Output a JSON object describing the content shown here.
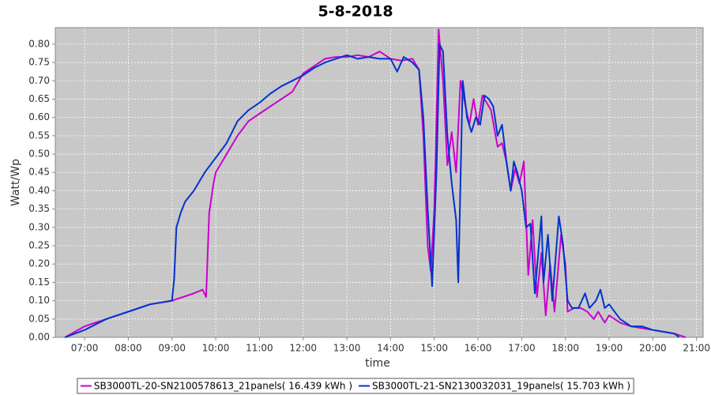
{
  "chart_data": {
    "type": "line",
    "title": "5-8-2018",
    "x_label": "time",
    "y_label": "Watt/Wp",
    "xlim": [
      6.33,
      21.15
    ],
    "ylim": [
      0,
      0.845
    ],
    "grid": true,
    "legend": "bottom",
    "xticks": [
      {
        "value": 7,
        "label": "07:00"
      },
      {
        "value": 8,
        "label": "08:00"
      },
      {
        "value": 9,
        "label": "09:00"
      },
      {
        "value": 10,
        "label": "10:00"
      },
      {
        "value": 11,
        "label": "11:00"
      },
      {
        "value": 12,
        "label": "12:00"
      },
      {
        "value": 13,
        "label": "13:00"
      },
      {
        "value": 14,
        "label": "14:00"
      },
      {
        "value": 15,
        "label": "15:00"
      },
      {
        "value": 16,
        "label": "16:00"
      },
      {
        "value": 17,
        "label": "17:00"
      },
      {
        "value": 18,
        "label": "18:00"
      },
      {
        "value": 19,
        "label": "19:00"
      },
      {
        "value": 20,
        "label": "20:00"
      },
      {
        "value": 21,
        "label": "21:00"
      }
    ],
    "yticks": [
      {
        "value": 0,
        "label": "0.00"
      },
      {
        "value": 0.05,
        "label": "0.05"
      },
      {
        "value": 0.1,
        "label": "0.10"
      },
      {
        "value": 0.15,
        "label": "0.15"
      },
      {
        "value": 0.2,
        "label": "0.20"
      },
      {
        "value": 0.25,
        "label": "0.25"
      },
      {
        "value": 0.3,
        "label": "0.30"
      },
      {
        "value": 0.35,
        "label": "0.35"
      },
      {
        "value": 0.4,
        "label": "0.40"
      },
      {
        "value": 0.45,
        "label": "0.45"
      },
      {
        "value": 0.5,
        "label": "0.50"
      },
      {
        "value": 0.55,
        "label": "0.55"
      },
      {
        "value": 0.6,
        "label": "0.60"
      },
      {
        "value": 0.65,
        "label": "0.65"
      },
      {
        "value": 0.7,
        "label": "0.70"
      },
      {
        "value": 0.75,
        "label": "0.75"
      },
      {
        "value": 0.8,
        "label": "0.80"
      }
    ],
    "series": [
      {
        "name": "SB3000TL-20-SN2100578613_21panels( 16.439 kWh )",
        "color": "#cc00cc",
        "x": [
          6.55,
          7.0,
          7.5,
          8.0,
          8.5,
          9.0,
          9.25,
          9.5,
          9.7,
          9.78,
          9.85,
          9.95,
          10.0,
          10.25,
          10.5,
          10.75,
          11.0,
          11.25,
          11.5,
          11.75,
          12.0,
          12.25,
          12.5,
          12.75,
          13.0,
          13.25,
          13.5,
          13.75,
          14.0,
          14.25,
          14.5,
          14.65,
          14.75,
          14.85,
          14.92,
          15.0,
          15.1,
          15.2,
          15.3,
          15.4,
          15.5,
          15.6,
          15.7,
          15.8,
          15.9,
          16.0,
          16.1,
          16.2,
          16.3,
          16.45,
          16.55,
          16.65,
          16.75,
          16.85,
          16.95,
          17.05,
          17.15,
          17.25,
          17.35,
          17.45,
          17.55,
          17.65,
          17.75,
          17.9,
          18.0,
          18.05,
          18.2,
          18.35,
          18.5,
          18.65,
          18.75,
          18.9,
          19.0,
          19.25,
          19.5,
          19.75,
          20.0,
          20.25,
          20.5,
          20.75
        ],
        "values": [
          0,
          0.03,
          0.05,
          0.07,
          0.09,
          0.1,
          0.11,
          0.12,
          0.13,
          0.11,
          0.34,
          0.42,
          0.45,
          0.5,
          0.55,
          0.59,
          0.61,
          0.63,
          0.65,
          0.67,
          0.72,
          0.74,
          0.76,
          0.765,
          0.765,
          0.77,
          0.765,
          0.78,
          0.76,
          0.755,
          0.76,
          0.73,
          0.55,
          0.25,
          0.18,
          0.35,
          0.84,
          0.7,
          0.47,
          0.56,
          0.45,
          0.7,
          0.64,
          0.58,
          0.65,
          0.58,
          0.66,
          0.64,
          0.62,
          0.52,
          0.53,
          0.48,
          0.4,
          0.46,
          0.42,
          0.48,
          0.17,
          0.32,
          0.11,
          0.23,
          0.06,
          0.2,
          0.07,
          0.28,
          0.2,
          0.07,
          0.08,
          0.08,
          0.07,
          0.05,
          0.07,
          0.04,
          0.06,
          0.04,
          0.03,
          0.025,
          0.02,
          0.015,
          0.01,
          0
        ]
      },
      {
        "name": "SB3000TL-21-SN2130032031_19panels( 15.703 kWh )",
        "color": "#0033cc",
        "x": [
          6.55,
          7.0,
          7.5,
          8.0,
          8.5,
          9.0,
          9.05,
          9.1,
          9.2,
          9.3,
          9.5,
          9.75,
          10.0,
          10.25,
          10.5,
          10.75,
          11.0,
          11.25,
          11.5,
          11.75,
          12.0,
          12.25,
          12.5,
          12.75,
          13.0,
          13.25,
          13.5,
          13.75,
          14.0,
          14.15,
          14.3,
          14.5,
          14.65,
          14.75,
          14.85,
          14.95,
          15.05,
          15.12,
          15.2,
          15.3,
          15.4,
          15.5,
          15.55,
          15.65,
          15.75,
          15.85,
          15.95,
          16.05,
          16.15,
          16.25,
          16.35,
          16.45,
          16.55,
          16.65,
          16.75,
          16.82,
          16.9,
          17.0,
          17.1,
          17.2,
          17.3,
          17.45,
          17.5,
          17.6,
          17.7,
          17.85,
          17.95,
          18.05,
          18.15,
          18.3,
          18.45,
          18.55,
          18.7,
          18.8,
          18.9,
          19.0,
          19.25,
          19.5,
          19.75,
          20.0,
          20.25,
          20.5,
          20.6
        ],
        "values": [
          0,
          0.02,
          0.05,
          0.07,
          0.09,
          0.1,
          0.16,
          0.3,
          0.34,
          0.37,
          0.4,
          0.45,
          0.49,
          0.53,
          0.59,
          0.62,
          0.64,
          0.665,
          0.685,
          0.7,
          0.715,
          0.735,
          0.75,
          0.76,
          0.77,
          0.76,
          0.765,
          0.76,
          0.76,
          0.725,
          0.765,
          0.75,
          0.73,
          0.6,
          0.35,
          0.14,
          0.45,
          0.8,
          0.78,
          0.55,
          0.42,
          0.32,
          0.15,
          0.7,
          0.6,
          0.56,
          0.6,
          0.58,
          0.66,
          0.65,
          0.63,
          0.55,
          0.58,
          0.48,
          0.4,
          0.48,
          0.45,
          0.4,
          0.3,
          0.31,
          0.12,
          0.33,
          0.15,
          0.28,
          0.1,
          0.33,
          0.25,
          0.1,
          0.08,
          0.08,
          0.12,
          0.08,
          0.1,
          0.13,
          0.08,
          0.09,
          0.05,
          0.03,
          0.03,
          0.02,
          0.015,
          0.01,
          0
        ]
      }
    ]
  }
}
